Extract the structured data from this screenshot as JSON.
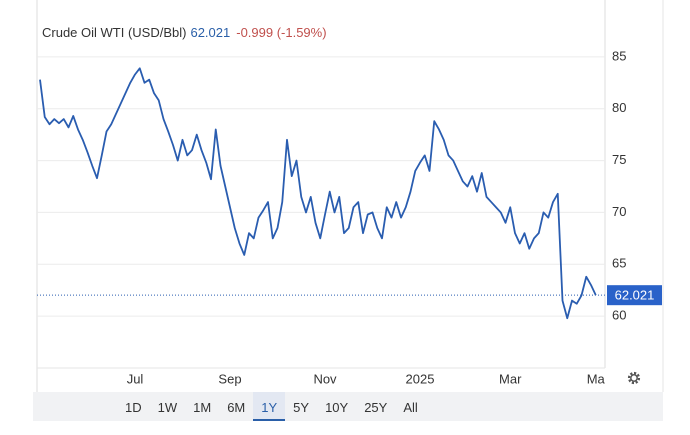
{
  "chart_data": {
    "type": "line",
    "title": "Crude Oil WTI (USD/Bbl)",
    "change_label": "-0.999 (-1.59%)",
    "categories": [
      null,
      null,
      null,
      null,
      null,
      null,
      null,
      null,
      null,
      null,
      null,
      null,
      null,
      null,
      null,
      null,
      null,
      null,
      null,
      null,
      "Jul",
      null,
      null,
      null,
      null,
      null,
      null,
      null,
      null,
      null,
      null,
      null,
      null,
      null,
      null,
      null,
      null,
      null,
      null,
      null,
      "Sep",
      null,
      null,
      null,
      null,
      null,
      null,
      null,
      null,
      null,
      null,
      null,
      null,
      null,
      null,
      null,
      null,
      null,
      null,
      null,
      "Nov",
      null,
      null,
      null,
      null,
      null,
      null,
      null,
      null,
      null,
      null,
      null,
      null,
      null,
      null,
      null,
      null,
      null,
      null,
      null,
      "2025",
      null,
      null,
      null,
      null,
      null,
      null,
      null,
      null,
      null,
      null,
      null,
      null,
      null,
      null,
      null,
      null,
      null,
      null,
      "Mar",
      null,
      null,
      null,
      null,
      null,
      null,
      null,
      null,
      null,
      null,
      null,
      null,
      null,
      null,
      null,
      null,
      null,
      "Ma"
    ],
    "series": [
      {
        "name": "Crude Oil WTI",
        "color": "#2a5db0",
        "values": [
          82.8,
          79.2,
          78.5,
          79.0,
          78.6,
          79.0,
          78.2,
          79.3,
          78.0,
          77.0,
          75.8,
          74.5,
          73.3,
          75.5,
          77.8,
          78.5,
          79.5,
          80.5,
          81.5,
          82.5,
          83.3,
          83.9,
          82.5,
          82.8,
          81.5,
          80.8,
          79.0,
          77.8,
          76.5,
          75.0,
          77.0,
          75.5,
          76.0,
          77.5,
          76.0,
          74.8,
          73.2,
          78.0,
          74.5,
          72.5,
          70.5,
          68.5,
          67.0,
          65.9,
          68.0,
          67.5,
          69.5,
          70.2,
          71.0,
          67.5,
          68.5,
          71.0,
          77.0,
          73.5,
          75.0,
          71.5,
          70.0,
          71.5,
          69.0,
          67.5,
          69.8,
          72.0,
          70.0,
          71.5,
          68.0,
          68.5,
          70.5,
          71.0,
          68.0,
          69.8,
          70.0,
          68.5,
          67.5,
          70.5,
          69.5,
          71.0,
          69.5,
          70.5,
          72.0,
          74.0,
          74.8,
          75.5,
          74.0,
          78.8,
          78.0,
          77.0,
          75.5,
          75.0,
          74.0,
          73.0,
          72.5,
          73.5,
          72.0,
          73.8,
          71.5,
          71.0,
          70.5,
          70.0,
          69.0,
          70.5,
          68.0,
          67.0,
          68.0,
          66.5,
          67.5,
          68.0,
          70.0,
          69.5,
          71.0,
          71.8,
          61.5,
          59.8,
          61.5,
          61.2,
          62.0,
          63.8,
          63.0,
          62.021
        ]
      }
    ],
    "ylim": [
      55,
      90
    ],
    "yticks": [
      60,
      65,
      70,
      75,
      80,
      85
    ],
    "grid": true,
    "ranges": [
      "1D",
      "1W",
      "1M",
      "6M",
      "1Y",
      "5Y",
      "10Y",
      "25Y",
      "All"
    ],
    "selected_range": "1Y"
  }
}
